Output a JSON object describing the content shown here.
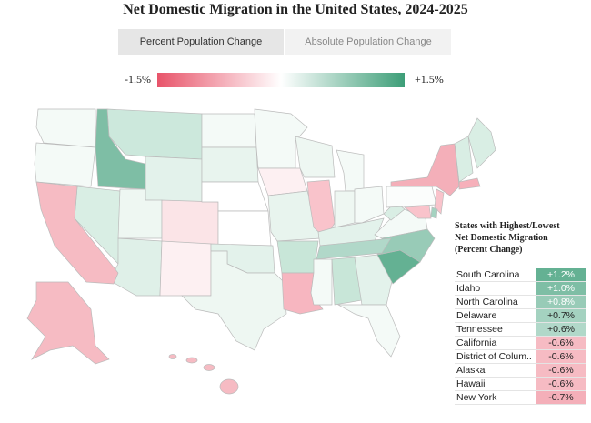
{
  "title": "Net Domestic Migration in the United States, 2024-2025",
  "tabs": {
    "items": [
      "Percent Population Change",
      "Absolute Population Change"
    ],
    "active": 0
  },
  "legend": {
    "min": {
      "value": -1.5,
      "label": "-1.5%"
    },
    "max": {
      "value": 1.5,
      "label": "+1.5%"
    },
    "low_color": "#e8546a",
    "mid_color": "#ffffff",
    "high_color": "#3d9e78"
  },
  "table": {
    "title_lines": [
      "States with Highest/Lowest",
      "Net Domestic Migration",
      "(Percent Change)"
    ],
    "rows": [
      {
        "state": "South Carolina",
        "value": 1.2,
        "label": "+1.2%"
      },
      {
        "state": "Idaho",
        "value": 1.0,
        "label": "+1.0%"
      },
      {
        "state": "North Carolina",
        "value": 0.8,
        "label": "+0.8%"
      },
      {
        "state": "Delaware",
        "value": 0.7,
        "label": "+0.7%"
      },
      {
        "state": "Tennessee",
        "value": 0.6,
        "label": "+0.6%"
      },
      {
        "state": "California",
        "value": -0.6,
        "label": "-0.6%"
      },
      {
        "state": "District of Colum..",
        "value": -0.6,
        "label": "-0.6%"
      },
      {
        "state": "Alaska",
        "value": -0.6,
        "label": "-0.6%"
      },
      {
        "state": "Hawaii",
        "value": -0.6,
        "label": "-0.6%"
      },
      {
        "state": "New York",
        "value": -0.7,
        "label": "-0.7%"
      }
    ]
  }
}
